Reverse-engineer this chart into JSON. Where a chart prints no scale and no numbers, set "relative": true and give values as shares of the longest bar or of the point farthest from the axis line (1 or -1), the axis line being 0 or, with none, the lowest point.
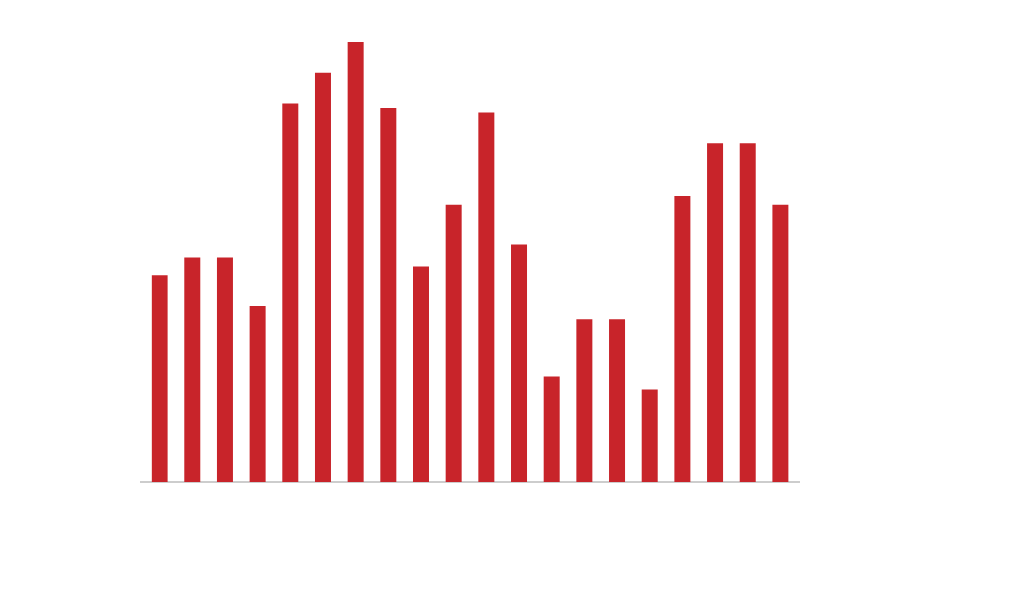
{
  "chart_data": {
    "type": "bar",
    "relative": true,
    "color": "#c8242a",
    "categories": [
      null,
      null,
      null,
      null,
      null,
      null,
      null,
      null,
      null,
      null,
      null,
      null,
      null,
      null,
      null,
      null,
      null,
      null,
      null,
      null
    ],
    "values": [
      0.47,
      0.51,
      0.51,
      0.4,
      0.86,
      0.93,
      1,
      0.85,
      0.49,
      0.63,
      0.84,
      0.54,
      0.24,
      0.37,
      0.37,
      0.21,
      0.65,
      0.77,
      0.77,
      0.63
    ]
  }
}
